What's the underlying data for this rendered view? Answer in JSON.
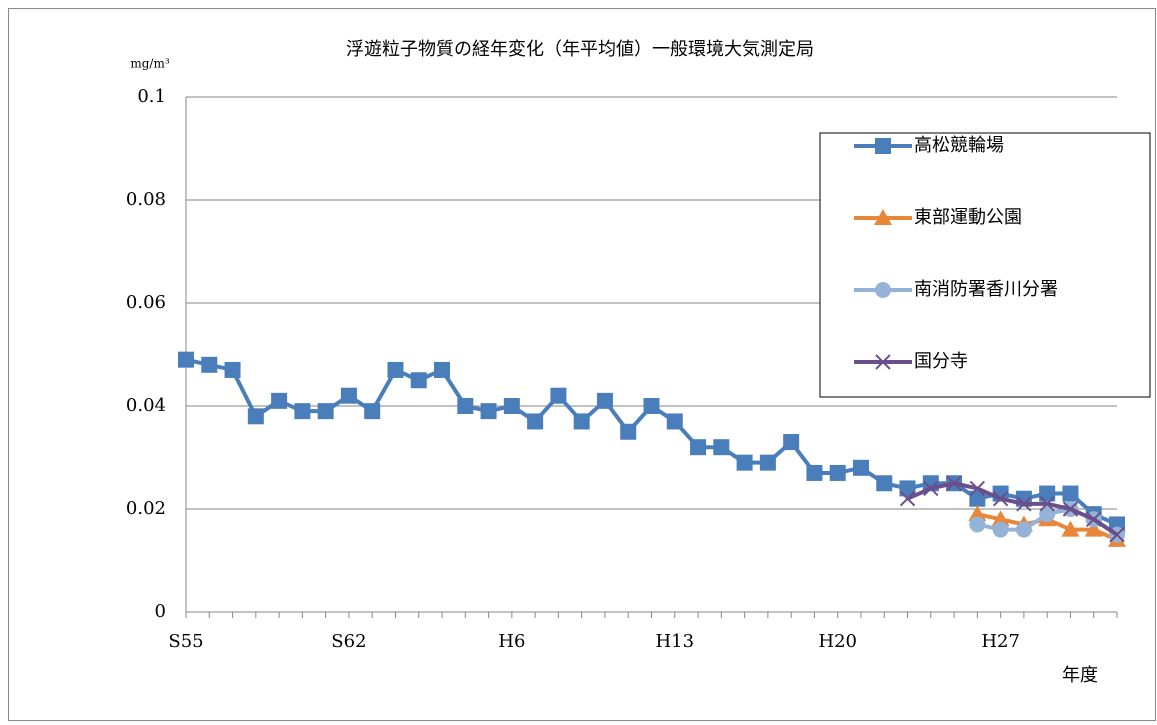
{
  "chart_data": {
    "type": "line",
    "title": "浮遊粒子物質の経年変化（年平均値）一般環境大気測定局",
    "y_unit": "mg/m³",
    "x_label": "年度",
    "categories": [
      "S55",
      null,
      null,
      null,
      null,
      null,
      null,
      "S62",
      null,
      null,
      null,
      null,
      null,
      null,
      "H6",
      null,
      null,
      null,
      null,
      null,
      null,
      "H13",
      null,
      null,
      null,
      null,
      null,
      null,
      "H20",
      null,
      null,
      null,
      null,
      null,
      null,
      "H27",
      null,
      null,
      null,
      null,
      null
    ],
    "ylim": [
      0,
      0.1
    ],
    "yticks": [
      0,
      0.02,
      0.04,
      0.06,
      0.08,
      0.1
    ],
    "grid": true,
    "legend": "top-right",
    "series": [
      {
        "name": "高松競輪場",
        "color": "#4a7ebb",
        "marker": "square",
        "values": [
          0.049,
          0.048,
          0.047,
          0.038,
          0.041,
          0.039,
          0.039,
          0.042,
          0.039,
          0.047,
          0.045,
          0.047,
          0.04,
          0.039,
          0.04,
          0.037,
          0.042,
          0.037,
          0.041,
          0.035,
          0.04,
          0.037,
          0.032,
          0.032,
          0.029,
          0.029,
          0.033,
          0.027,
          0.027,
          0.028,
          0.025,
          0.024,
          0.025,
          0.025,
          0.022,
          0.023,
          0.022,
          0.023,
          0.023,
          0.019,
          0.017
        ]
      },
      {
        "name": "東部運動公園",
        "color": "#e8873a",
        "marker": "triangle",
        "values": [
          null,
          null,
          null,
          null,
          null,
          null,
          null,
          null,
          null,
          null,
          null,
          null,
          null,
          null,
          null,
          null,
          null,
          null,
          null,
          null,
          null,
          null,
          null,
          null,
          null,
          null,
          null,
          null,
          null,
          null,
          null,
          null,
          null,
          null,
          0.019,
          0.018,
          0.017,
          0.018,
          0.016,
          0.016,
          0.014
        ]
      },
      {
        "name": "南消防署香川分署",
        "color": "#95b3d7",
        "marker": "circle",
        "values": [
          null,
          null,
          null,
          null,
          null,
          null,
          null,
          null,
          null,
          null,
          null,
          null,
          null,
          null,
          null,
          null,
          null,
          null,
          null,
          null,
          null,
          null,
          null,
          null,
          null,
          null,
          null,
          null,
          null,
          null,
          null,
          null,
          null,
          null,
          0.017,
          0.016,
          0.016,
          0.019,
          0.02,
          0.018,
          0.015
        ]
      },
      {
        "name": "国分寺",
        "color": "#6a4f8c",
        "marker": "x",
        "values": [
          null,
          null,
          null,
          null,
          null,
          null,
          null,
          null,
          null,
          null,
          null,
          null,
          null,
          null,
          null,
          null,
          null,
          null,
          null,
          null,
          null,
          null,
          null,
          null,
          null,
          null,
          null,
          null,
          null,
          null,
          null,
          0.022,
          0.024,
          0.025,
          0.024,
          0.022,
          0.021,
          0.021,
          0.02,
          0.018,
          0.015
        ]
      }
    ]
  }
}
